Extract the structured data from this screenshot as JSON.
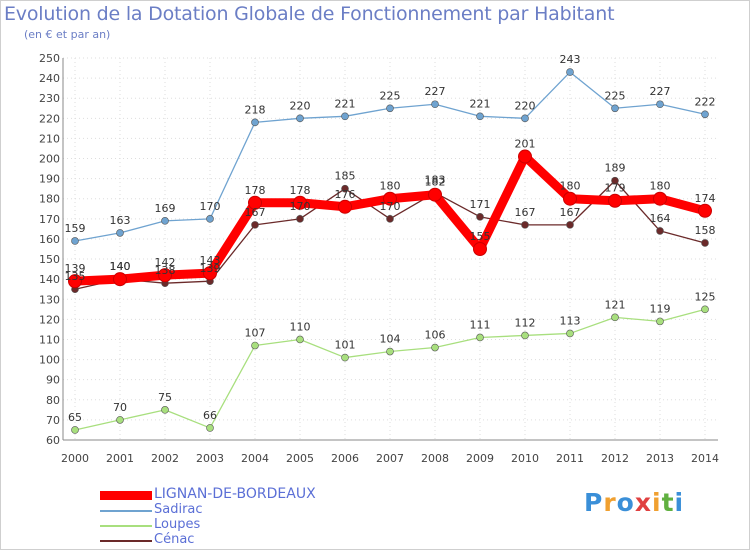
{
  "chart_data": {
    "type": "line",
    "title": "Evolution de la Dotation Globale de Fonctionnement par Habitant",
    "subtitle": "(en € et par an)",
    "xlabel": "",
    "ylabel": "",
    "ylim": [
      60,
      250
    ],
    "ytick_step": 10,
    "categories": [
      "2000",
      "2001",
      "2002",
      "2003",
      "2004",
      "2005",
      "2006",
      "2007",
      "2008",
      "2009",
      "2010",
      "2011",
      "2012",
      "2013",
      "2014"
    ],
    "series": [
      {
        "name": "LIGNAN-DE-BORDEAUX",
        "color": "#ff0000",
        "values": [
          139,
          140,
          142,
          143,
          178,
          178,
          176,
          180,
          182,
          155,
          201,
          180,
          179,
          180,
          174
        ]
      },
      {
        "name": "Sadirac",
        "color": "#6fa3d0",
        "values": [
          159,
          163,
          169,
          170,
          218,
          220,
          221,
          225,
          227,
          221,
          220,
          243,
          225,
          227,
          222
        ]
      },
      {
        "name": "Loupes",
        "color": "#a8df7e",
        "values": [
          65,
          70,
          75,
          66,
          107,
          110,
          101,
          104,
          106,
          111,
          112,
          113,
          121,
          119,
          125
        ]
      },
      {
        "name": "Cénac",
        "color": "#6b2a2a",
        "values": [
          135,
          140,
          138,
          139,
          167,
          170,
          185,
          170,
          183,
          171,
          167,
          167,
          189,
          164,
          158
        ]
      }
    ]
  },
  "logo": {
    "text": "Proxiti",
    "letters": [
      "P",
      "r",
      "o",
      "x",
      "i",
      "t",
      "i"
    ],
    "colors": [
      "#3a8fd8",
      "#f0a030",
      "#3a8fd8",
      "#e04040",
      "#f0a030",
      "#60b040",
      "#3a8fd8"
    ]
  }
}
